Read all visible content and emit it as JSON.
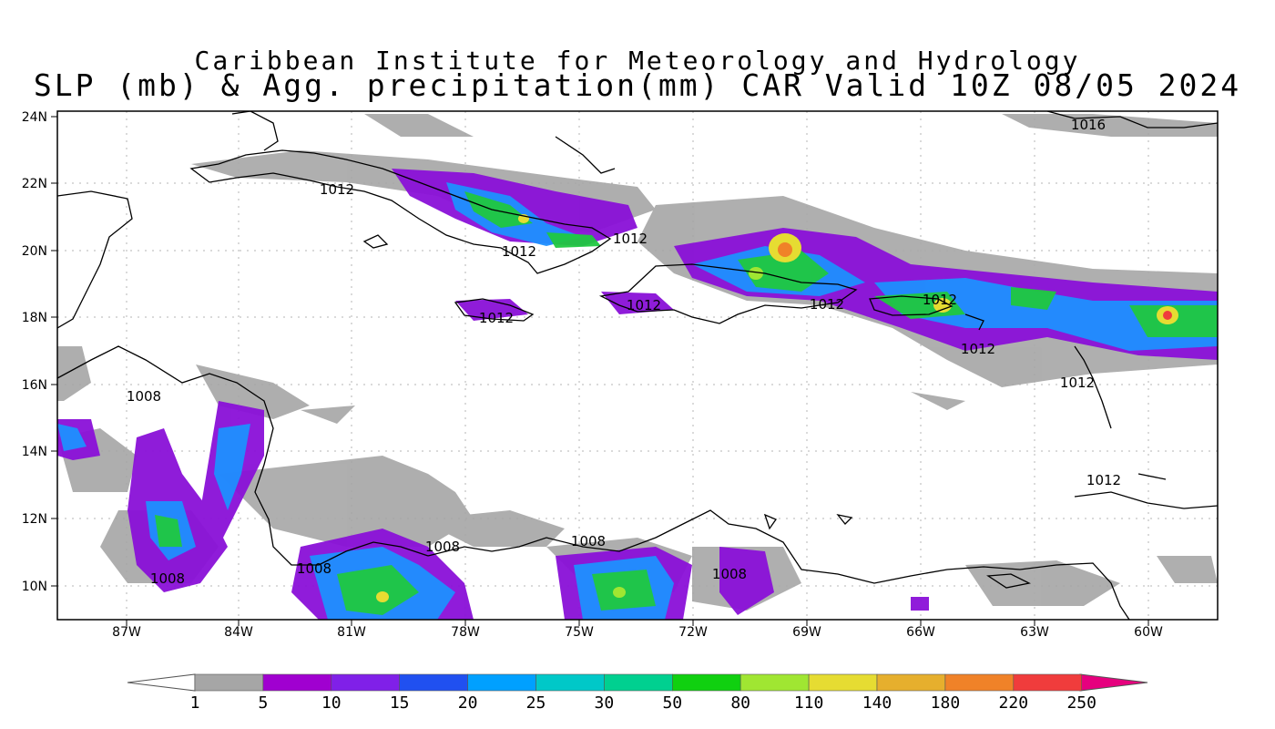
{
  "title": {
    "line1": "Caribbean Institute for Meteorology and Hydrology",
    "line2": "SLP (mb) & Agg. precipitation(mm) CAR Valid 10Z 08/05 2024"
  },
  "map": {
    "lat_labels": [
      "24N",
      "22N",
      "20N",
      "18N",
      "16N",
      "14N",
      "12N",
      "10N"
    ],
    "lon_labels": [
      "87W",
      "84W",
      "81W",
      "78W",
      "75W",
      "72W",
      "69W",
      "66W",
      "63W",
      "60W"
    ],
    "isobar_labels": [
      "1016",
      "1012",
      "1012",
      "1012",
      "1012",
      "1012",
      "1012",
      "1012",
      "1012",
      "1012",
      "1008",
      "1008",
      "1008",
      "1008",
      "1008",
      "1008",
      "1012"
    ],
    "grid": true
  },
  "colorbar": {
    "colors": [
      "#a6a6a6",
      "#a000d0",
      "#8020e8",
      "#2050f0",
      "#00a0ff",
      "#00c8c8",
      "#00d090",
      "#10d010",
      "#a0e632",
      "#e6dc32",
      "#e6af2d",
      "#f08228",
      "#f03c3c",
      "#f00082"
    ],
    "labels": [
      "1",
      "5",
      "10",
      "15",
      "20",
      "25",
      "30",
      "50",
      "80",
      "110",
      "140",
      "180",
      "220",
      "250"
    ]
  }
}
